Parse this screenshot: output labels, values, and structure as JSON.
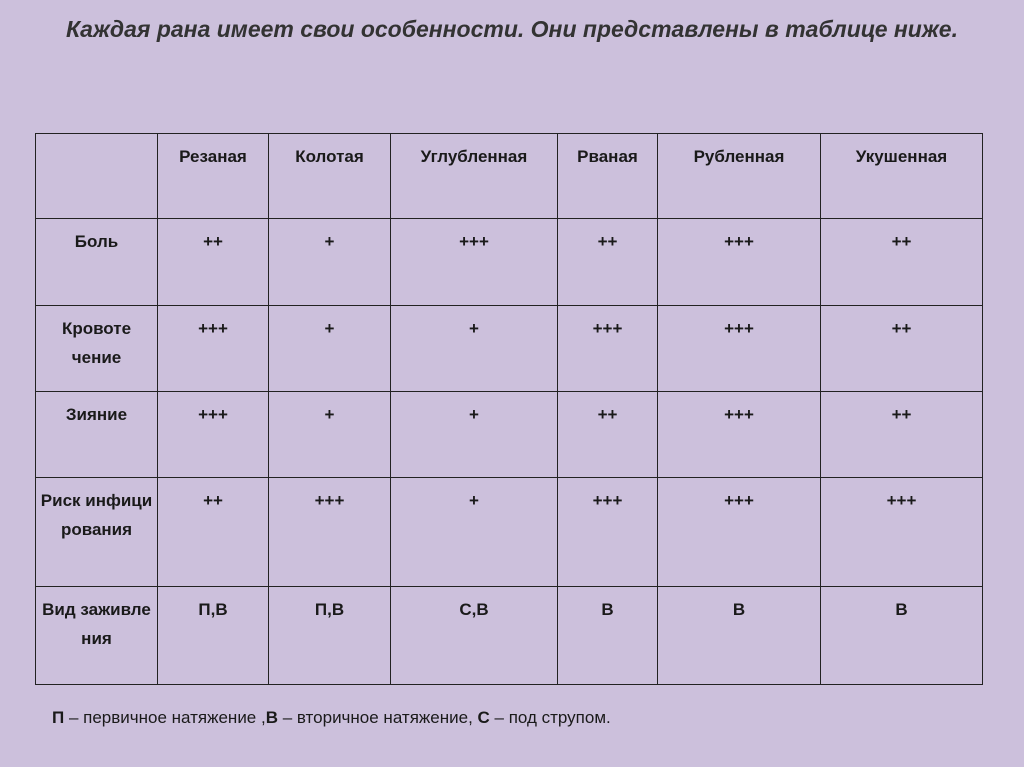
{
  "title": "Каждая рана имеет свои особенности. Они представлены в таблице ниже.",
  "table": {
    "columns": [
      "",
      "Резаная",
      "Колотая",
      "Углубленная",
      "Рваная",
      "Рубленная",
      "Укушенная"
    ],
    "rows": [
      {
        "label": "Боль",
        "values": [
          "++",
          "+",
          "+++",
          "++",
          "+++",
          "++"
        ]
      },
      {
        "label": "Кровоте чение",
        "values": [
          "+++",
          "+",
          "+",
          "+++",
          "+++",
          "++"
        ]
      },
      {
        "label": "Зияние",
        "values": [
          "+++",
          "+",
          "+",
          "++",
          "+++",
          "++"
        ]
      },
      {
        "label": "Риск инфици рования",
        "values": [
          "++",
          "+++",
          "+",
          "+++",
          "+++",
          "+++"
        ]
      },
      {
        "label": "Вид заживле ния",
        "values": [
          "П,В",
          "П,В",
          "С,В",
          "В",
          "В",
          "В"
        ]
      }
    ]
  },
  "legend": {
    "p_key": "П",
    "p_text": " – первичное натяжение ,",
    "v_key": "В",
    "v_text": " – вторичное натяжение, ",
    "s_key": "С",
    "s_text": " – под струпом."
  }
}
